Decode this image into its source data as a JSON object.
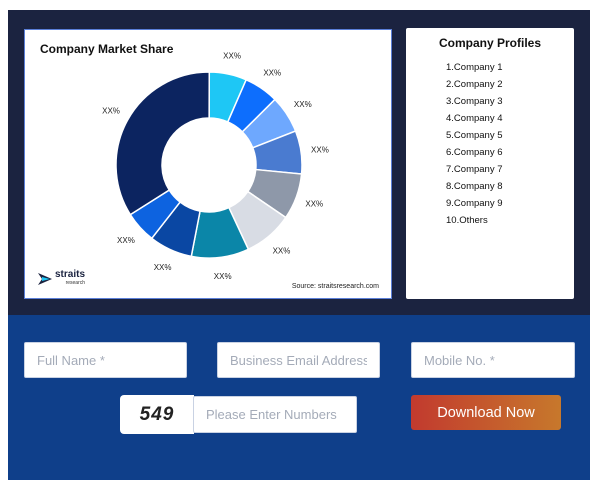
{
  "chart_panel": {
    "title": "Company Market Share",
    "source": "Source: straitsresearch.com",
    "logo": {
      "name": "straits",
      "sub": "research"
    }
  },
  "chart_data": {
    "type": "pie",
    "title": "Company Market Share",
    "donut": true,
    "slices": [
      {
        "label": "XX%",
        "value": 6.5,
        "color": "#1ec7f5"
      },
      {
        "label": "XX%",
        "value": 6.0,
        "color": "#0d6efd"
      },
      {
        "label": "XX%",
        "value": 6.5,
        "color": "#6ea8fe"
      },
      {
        "label": "XX%",
        "value": 7.5,
        "color": "#4a7bd0"
      },
      {
        "label": "XX%",
        "value": 8.0,
        "color": "#8e98a9"
      },
      {
        "label": "XX%",
        "value": 8.5,
        "color": "#d8dce4"
      },
      {
        "label": "XX%",
        "value": 10.0,
        "color": "#0b86a8"
      },
      {
        "label": "XX%",
        "value": 7.5,
        "color": "#0a47a3"
      },
      {
        "label": "XX%",
        "value": 5.5,
        "color": "#0d63e0"
      },
      {
        "label": "XX%",
        "value": 34.0,
        "color": "#0c2460"
      }
    ]
  },
  "profiles": {
    "title": "Company Profiles",
    "items": [
      "1.Company 1",
      "2.Company 2",
      "3.Company 3",
      "4.Company 4",
      "5.Company 5",
      "6.Company 6",
      "7.Company 7",
      "8.Company 8",
      "9.Company 9",
      "10.Others"
    ]
  },
  "form": {
    "full_name_placeholder": "Full Name *",
    "email_placeholder": "Business Email Address *",
    "mobile_placeholder": "Mobile No. *",
    "captcha_code": "549",
    "captcha_placeholder": "Please Enter Numbers",
    "download_label": "Download Now",
    "button_gradient": [
      "#c23a2e",
      "#c7782c"
    ]
  }
}
